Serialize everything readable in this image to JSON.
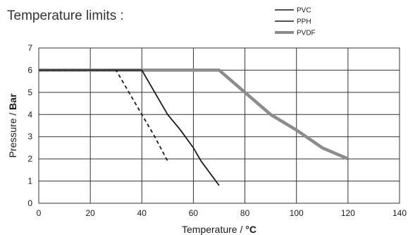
{
  "chart_data": {
    "type": "line",
    "title": "Temperature limits :",
    "xlabel": {
      "prefix": "Temperature / ",
      "unit": "°C"
    },
    "ylabel": {
      "prefix": "Pressure / ",
      "unit": "Bar"
    },
    "xlim": [
      0,
      140
    ],
    "ylim": [
      0,
      7
    ],
    "xticks": [
      0,
      20,
      40,
      60,
      80,
      100,
      120,
      140
    ],
    "yticks": [
      0,
      1,
      2,
      3,
      4,
      5,
      6,
      7
    ],
    "grid": true,
    "legend_position": "top-right",
    "series": [
      {
        "name": "PVC",
        "style": "dashed",
        "color": "#1a1a1a",
        "points": [
          [
            0,
            6
          ],
          [
            30,
            6
          ],
          [
            35,
            5
          ],
          [
            40,
            4
          ],
          [
            45,
            3
          ],
          [
            50,
            1.9
          ]
        ]
      },
      {
        "name": "PPH",
        "style": "solid",
        "color": "#1a1a1a",
        "points": [
          [
            0,
            6
          ],
          [
            40,
            6
          ],
          [
            45,
            5
          ],
          [
            50,
            4
          ],
          [
            55,
            3.3
          ],
          [
            60,
            2.5
          ],
          [
            63,
            1.9
          ],
          [
            70,
            0.8
          ]
        ]
      },
      {
        "name": "PVDF",
        "style": "thick",
        "color": "#8c8c8c",
        "points": [
          [
            0,
            6
          ],
          [
            70,
            6
          ],
          [
            80,
            5
          ],
          [
            90,
            4
          ],
          [
            100,
            3.3
          ],
          [
            110,
            2.5
          ],
          [
            120,
            2
          ]
        ]
      }
    ]
  }
}
